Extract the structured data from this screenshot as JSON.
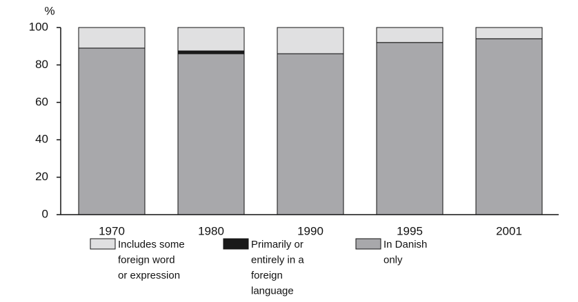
{
  "chart_data": {
    "type": "stacked_bar",
    "y_label": "%",
    "categories": [
      "1970",
      "1980",
      "1990",
      "1995",
      "2001"
    ],
    "series": [
      {
        "name": "In Danish only",
        "color": "#a8a8ab",
        "values": [
          89,
          86,
          86,
          92,
          94
        ]
      },
      {
        "name": "Primarily or entirely in a foreign language",
        "color": "#1a1a1a",
        "values": [
          0,
          1.5,
          0,
          0,
          0
        ]
      },
      {
        "name": "Includes some foreign word or expression",
        "color": "#e0e0e1",
        "values": [
          11,
          12.5,
          14,
          8,
          6
        ]
      }
    ],
    "ylim": [
      0,
      100
    ],
    "yticks": [
      0,
      20,
      40,
      60,
      80,
      100
    ],
    "grid": false
  }
}
